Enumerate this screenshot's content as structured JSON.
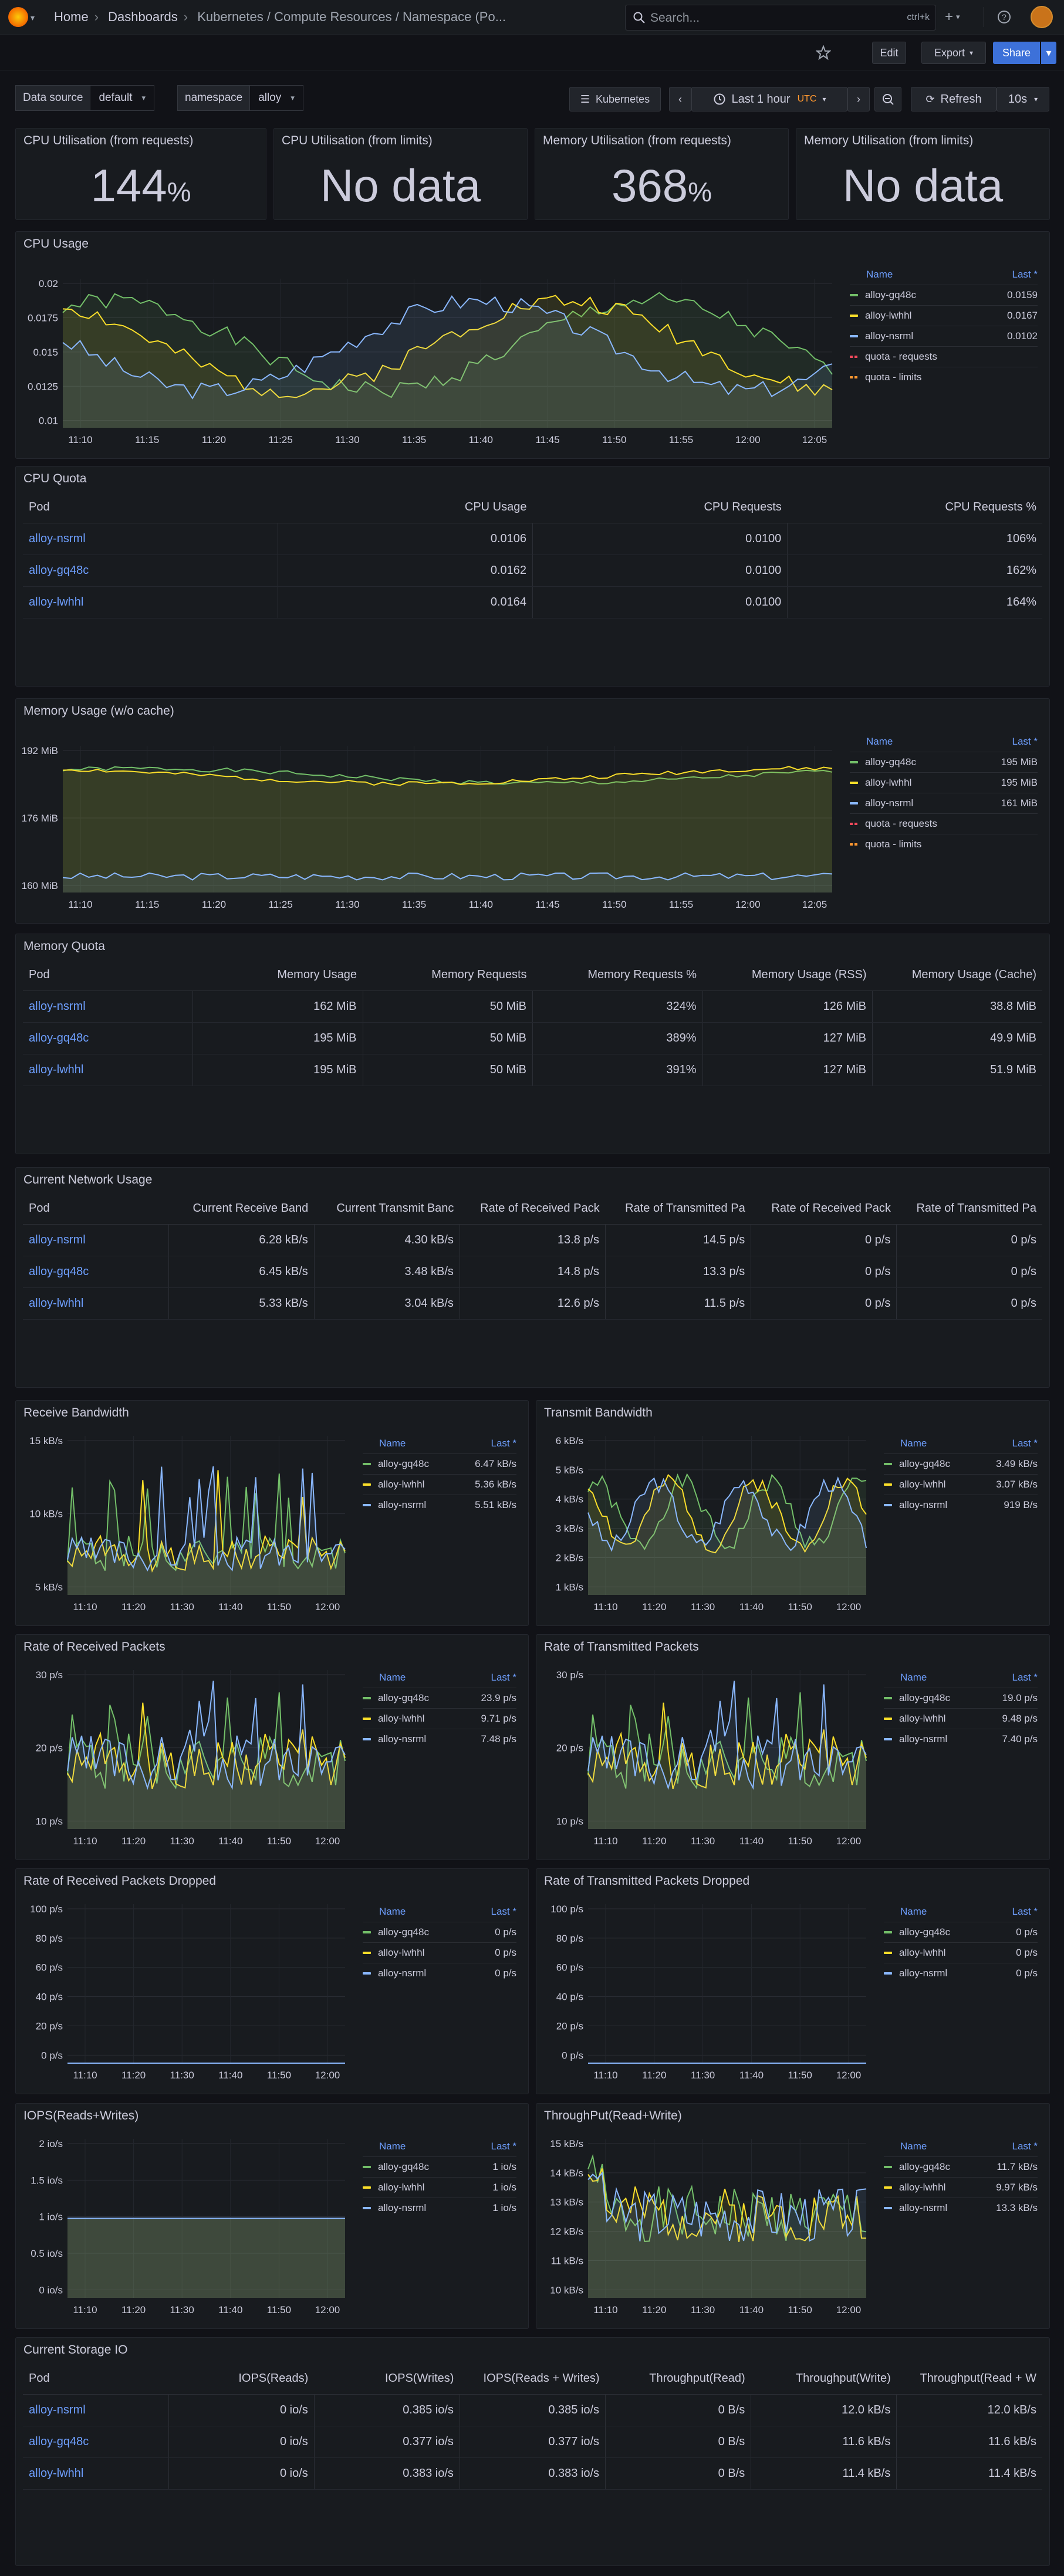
{
  "topbar": {
    "breadcrumbs": [
      "Home",
      "Dashboards",
      "Kubernetes / Compute Resources / Namespace (Po..."
    ],
    "search_placeholder": "Search...",
    "search_shortcut": "ctrl+k",
    "new_label": "+",
    "help_label": "?",
    "news_label": "rss"
  },
  "subbar": {
    "edit": "Edit",
    "export": "Export",
    "share": "Share"
  },
  "variables": {
    "datasource_label": "Data source",
    "datasource_value": "default",
    "namespace_label": "namespace",
    "namespace_value": "alloy"
  },
  "timebar": {
    "kubernetes": "Kubernetes",
    "range": "Last 1 hour",
    "tz": "UTC",
    "refresh": "Refresh",
    "interval": "10s"
  },
  "colors": {
    "green": "#73bf69",
    "yellow": "#fade2a",
    "blue": "#8ab8ff",
    "red": "#f2495c",
    "orange": "#ff9830"
  },
  "stats": [
    {
      "title": "CPU Utilisation (from requests)",
      "value": "144",
      "unit": "%"
    },
    {
      "title": "CPU Utilisation (from limits)",
      "value": "No data",
      "unit": ""
    },
    {
      "title": "Memory Utilisation (from requests)",
      "value": "368",
      "unit": "%"
    },
    {
      "title": "Memory Utilisation (from limits)",
      "value": "No data",
      "unit": ""
    }
  ],
  "legend_header": {
    "name": "Name",
    "last": "Last *"
  },
  "charts": {
    "cpu_usage": {
      "title": "CPU Usage",
      "yticks": [
        "0.02",
        "0.0175",
        "0.015",
        "0.0125",
        "0.01"
      ],
      "xticks": [
        "11:10",
        "11:15",
        "11:20",
        "11:25",
        "11:30",
        "11:35",
        "11:40",
        "11:45",
        "11:50",
        "11:55",
        "12:00",
        "12:05"
      ],
      "legend": [
        {
          "name": "alloy-gq48c",
          "last": "0.0159",
          "color": "#73bf69"
        },
        {
          "name": "alloy-lwhhl",
          "last": "0.0167",
          "color": "#fade2a"
        },
        {
          "name": "alloy-nsrml",
          "last": "0.0102",
          "color": "#8ab8ff"
        },
        {
          "name": "quota - requests",
          "last": "",
          "color": "#f2495c"
        },
        {
          "name": "quota - limits",
          "last": "",
          "color": "#ff9830"
        }
      ]
    },
    "memory_usage": {
      "title": "Memory Usage (w/o cache)",
      "yticks": [
        "192 MiB",
        "176 MiB",
        "160 MiB"
      ],
      "xticks": [
        "11:10",
        "11:15",
        "11:20",
        "11:25",
        "11:30",
        "11:35",
        "11:40",
        "11:45",
        "11:50",
        "11:55",
        "12:00",
        "12:05"
      ],
      "legend": [
        {
          "name": "alloy-gq48c",
          "last": "195 MiB",
          "color": "#73bf69"
        },
        {
          "name": "alloy-lwhhl",
          "last": "195 MiB",
          "color": "#fade2a"
        },
        {
          "name": "alloy-nsrml",
          "last": "161 MiB",
          "color": "#8ab8ff"
        },
        {
          "name": "quota - requests",
          "last": "",
          "color": "#f2495c"
        },
        {
          "name": "quota - limits",
          "last": "",
          "color": "#ff9830"
        }
      ]
    },
    "receive_bw": {
      "title": "Receive Bandwidth",
      "yticks": [
        "15 kB/s",
        "10 kB/s",
        "5 kB/s"
      ],
      "xticks": [
        "11:10",
        "11:20",
        "11:30",
        "11:40",
        "11:50",
        "12:00"
      ],
      "legend": [
        {
          "name": "alloy-gq48c",
          "last": "6.47 kB/s",
          "color": "#73bf69"
        },
        {
          "name": "alloy-lwhhl",
          "last": "5.36 kB/s",
          "color": "#fade2a"
        },
        {
          "name": "alloy-nsrml",
          "last": "5.51 kB/s",
          "color": "#8ab8ff"
        }
      ]
    },
    "transmit_bw": {
      "title": "Transmit Bandwidth",
      "yticks": [
        "6 kB/s",
        "5 kB/s",
        "4 kB/s",
        "3 kB/s",
        "2 kB/s",
        "1 kB/s"
      ],
      "xticks": [
        "11:10",
        "11:20",
        "11:30",
        "11:40",
        "11:50",
        "12:00"
      ],
      "legend": [
        {
          "name": "alloy-gq48c",
          "last": "3.49 kB/s",
          "color": "#73bf69"
        },
        {
          "name": "alloy-lwhhl",
          "last": "3.07 kB/s",
          "color": "#fade2a"
        },
        {
          "name": "alloy-nsrml",
          "last": "919 B/s",
          "color": "#8ab8ff"
        }
      ]
    },
    "rx_packets": {
      "title": "Rate of Received Packets",
      "yticks": [
        "30 p/s",
        "20 p/s",
        "10 p/s"
      ],
      "xticks": [
        "11:10",
        "11:20",
        "11:30",
        "11:40",
        "11:50",
        "12:00"
      ],
      "legend": [
        {
          "name": "alloy-gq48c",
          "last": "23.9 p/s",
          "color": "#73bf69"
        },
        {
          "name": "alloy-lwhhl",
          "last": "9.71 p/s",
          "color": "#fade2a"
        },
        {
          "name": "alloy-nsrml",
          "last": "7.48 p/s",
          "color": "#8ab8ff"
        }
      ]
    },
    "tx_packets": {
      "title": "Rate of Transmitted Packets",
      "yticks": [
        "30 p/s",
        "20 p/s",
        "10 p/s"
      ],
      "xticks": [
        "11:10",
        "11:20",
        "11:30",
        "11:40",
        "11:50",
        "12:00"
      ],
      "legend": [
        {
          "name": "alloy-gq48c",
          "last": "19.0 p/s",
          "color": "#73bf69"
        },
        {
          "name": "alloy-lwhhl",
          "last": "9.48 p/s",
          "color": "#fade2a"
        },
        {
          "name": "alloy-nsrml",
          "last": "7.40 p/s",
          "color": "#8ab8ff"
        }
      ]
    },
    "rx_dropped": {
      "title": "Rate of Received Packets Dropped",
      "yticks": [
        "100 p/s",
        "80 p/s",
        "60 p/s",
        "40 p/s",
        "20 p/s",
        "0 p/s"
      ],
      "xticks": [
        "11:10",
        "11:20",
        "11:30",
        "11:40",
        "11:50",
        "12:00"
      ],
      "legend": [
        {
          "name": "alloy-gq48c",
          "last": "0 p/s",
          "color": "#73bf69"
        },
        {
          "name": "alloy-lwhhl",
          "last": "0 p/s",
          "color": "#fade2a"
        },
        {
          "name": "alloy-nsrml",
          "last": "0 p/s",
          "color": "#8ab8ff"
        }
      ]
    },
    "tx_dropped": {
      "title": "Rate of Transmitted Packets Dropped",
      "yticks": [
        "100 p/s",
        "80 p/s",
        "60 p/s",
        "40 p/s",
        "20 p/s",
        "0 p/s"
      ],
      "xticks": [
        "11:10",
        "11:20",
        "11:30",
        "11:40",
        "11:50",
        "12:00"
      ],
      "legend": [
        {
          "name": "alloy-gq48c",
          "last": "0 p/s",
          "color": "#73bf69"
        },
        {
          "name": "alloy-lwhhl",
          "last": "0 p/s",
          "color": "#fade2a"
        },
        {
          "name": "alloy-nsrml",
          "last": "0 p/s",
          "color": "#8ab8ff"
        }
      ]
    },
    "iops": {
      "title": "IOPS(Reads+Writes)",
      "yticks": [
        "2 io/s",
        "1.5 io/s",
        "1 io/s",
        "0.5 io/s",
        "0 io/s"
      ],
      "xticks": [
        "11:10",
        "11:20",
        "11:30",
        "11:40",
        "11:50",
        "12:00"
      ],
      "legend": [
        {
          "name": "alloy-gq48c",
          "last": "1 io/s",
          "color": "#73bf69"
        },
        {
          "name": "alloy-lwhhl",
          "last": "1 io/s",
          "color": "#fade2a"
        },
        {
          "name": "alloy-nsrml",
          "last": "1 io/s",
          "color": "#8ab8ff"
        }
      ]
    },
    "throughput": {
      "title": "ThroughPut(Read+Write)",
      "yticks": [
        "15 kB/s",
        "14 kB/s",
        "13 kB/s",
        "12 kB/s",
        "11 kB/s",
        "10 kB/s"
      ],
      "xticks": [
        "11:10",
        "11:20",
        "11:30",
        "11:40",
        "11:50",
        "12:00"
      ],
      "legend": [
        {
          "name": "alloy-gq48c",
          "last": "11.7 kB/s",
          "color": "#73bf69"
        },
        {
          "name": "alloy-lwhhl",
          "last": "9.97 kB/s",
          "color": "#fade2a"
        },
        {
          "name": "alloy-nsrml",
          "last": "13.3 kB/s",
          "color": "#8ab8ff"
        }
      ]
    }
  },
  "tables": {
    "cpu_quota": {
      "title": "CPU Quota",
      "headers": [
        "Pod",
        "CPU Usage",
        "CPU Requests",
        "CPU Requests %"
      ],
      "rows": [
        [
          "alloy-nsrml",
          "0.0106",
          "0.0100",
          "106%"
        ],
        [
          "alloy-gq48c",
          "0.0162",
          "0.0100",
          "162%"
        ],
        [
          "alloy-lwhhl",
          "0.0164",
          "0.0100",
          "164%"
        ]
      ]
    },
    "memory_quota": {
      "title": "Memory Quota",
      "headers": [
        "Pod",
        "Memory Usage",
        "Memory Requests",
        "Memory Requests %",
        "Memory Usage (RSS)",
        "Memory Usage (Cache)"
      ],
      "rows": [
        [
          "alloy-nsrml",
          "162 MiB",
          "50 MiB",
          "324%",
          "126 MiB",
          "38.8 MiB"
        ],
        [
          "alloy-gq48c",
          "195 MiB",
          "50 MiB",
          "389%",
          "127 MiB",
          "49.9 MiB"
        ],
        [
          "alloy-lwhhl",
          "195 MiB",
          "50 MiB",
          "391%",
          "127 MiB",
          "51.9 MiB"
        ]
      ]
    },
    "network": {
      "title": "Current Network Usage",
      "headers": [
        "Pod",
        "Current Receive Band",
        "Current Transmit Banc",
        "Rate of Received Pack",
        "Rate of Transmitted Pa",
        "Rate of Received Pack",
        "Rate of Transmitted Pa"
      ],
      "rows": [
        [
          "alloy-nsrml",
          "6.28 kB/s",
          "4.30 kB/s",
          "13.8 p/s",
          "14.5 p/s",
          "0 p/s",
          "0 p/s"
        ],
        [
          "alloy-gq48c",
          "6.45 kB/s",
          "3.48 kB/s",
          "14.8 p/s",
          "13.3 p/s",
          "0 p/s",
          "0 p/s"
        ],
        [
          "alloy-lwhhl",
          "5.33 kB/s",
          "3.04 kB/s",
          "12.6 p/s",
          "11.5 p/s",
          "0 p/s",
          "0 p/s"
        ]
      ]
    },
    "storage": {
      "title": "Current Storage IO",
      "headers": [
        "Pod",
        "IOPS(Reads)",
        "IOPS(Writes)",
        "IOPS(Reads + Writes)",
        "Throughput(Read)",
        "Throughput(Write)",
        "Throughput(Read + W"
      ],
      "rows": [
        [
          "alloy-nsrml",
          "0 io/s",
          "0.385 io/s",
          "0.385 io/s",
          "0 B/s",
          "12.0 kB/s",
          "12.0 kB/s"
        ],
        [
          "alloy-gq48c",
          "0 io/s",
          "0.377 io/s",
          "0.377 io/s",
          "0 B/s",
          "11.6 kB/s",
          "11.6 kB/s"
        ],
        [
          "alloy-lwhhl",
          "0 io/s",
          "0.383 io/s",
          "0.383 io/s",
          "0 B/s",
          "11.4 kB/s",
          "11.4 kB/s"
        ]
      ]
    }
  }
}
